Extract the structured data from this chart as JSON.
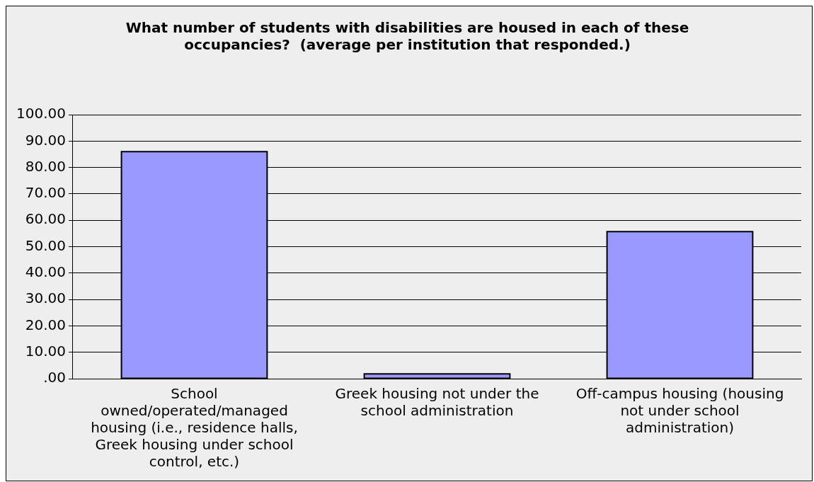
{
  "chart_data": {
    "type": "bar",
    "title": "What number of students with disabilities are housed in each of these occupancies?  (average per institution that responded.)",
    "categories": [
      "School owned/operated/managed housing (i.e., residence halls, Greek housing under school control, etc.)",
      "Greek housing not under the school administration",
      "Off-campus housing (housing not under school administration)"
    ],
    "values": [
      86,
      1.8,
      55.7
    ],
    "color": "#9999ff",
    "ylim": [
      0,
      100
    ],
    "yticks": [
      {
        "value": 0,
        "label": ".00"
      },
      {
        "value": 10,
        "label": "10.00"
      },
      {
        "value": 20,
        "label": "20.00"
      },
      {
        "value": 30,
        "label": "30.00"
      },
      {
        "value": 40,
        "label": "40.00"
      },
      {
        "value": 50,
        "label": "50.00"
      },
      {
        "value": 60,
        "label": "60.00"
      },
      {
        "value": 70,
        "label": "70.00"
      },
      {
        "value": 80,
        "label": "80.00"
      },
      {
        "value": 90,
        "label": "90.00"
      },
      {
        "value": 100,
        "label": "100.00"
      }
    ],
    "grid": "y"
  }
}
